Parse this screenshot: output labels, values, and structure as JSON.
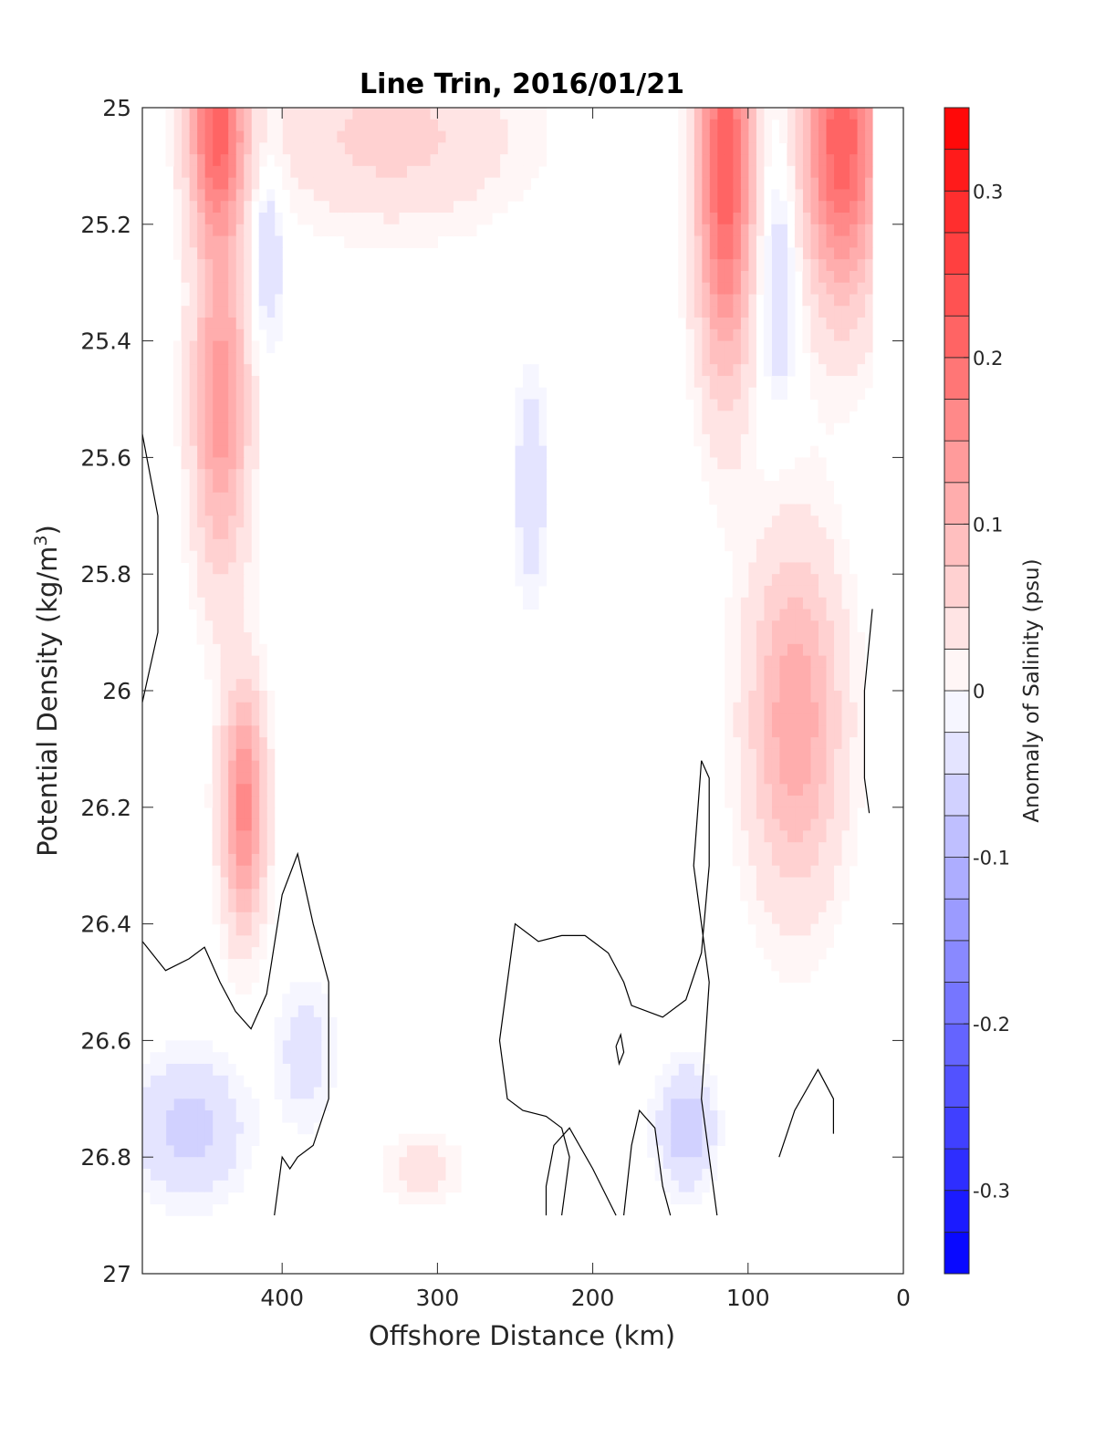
{
  "chart_data": {
    "type": "heatmap",
    "title": "Line Trin, 2016/01/21",
    "xlabel": "Offshore Distance (km)",
    "ylabel_main": "Potential Density (kg/m",
    "ylabel_sup": "3",
    "ylabel_close": ")",
    "xlim": [
      490,
      0
    ],
    "ylim": [
      25,
      27
    ],
    "y_reversed": true,
    "x_reversed": true,
    "x_ticks": [
      400,
      300,
      200,
      100,
      0
    ],
    "x_tick_labels": [
      "400",
      "300",
      "200",
      "100",
      "0"
    ],
    "y_ticks": [
      25,
      25.2,
      25.4,
      25.6,
      25.8,
      26,
      26.2,
      26.4,
      26.6,
      26.8,
      27
    ],
    "y_tick_labels": [
      "25",
      "25.2",
      "25.4",
      "25.6",
      "25.8",
      "26",
      "26.2",
      "26.4",
      "26.6",
      "26.8",
      "27"
    ],
    "colorbar": {
      "label": "Anomaly of Salinity (psu)",
      "range": [
        -0.35,
        0.35
      ],
      "levels": 28,
      "ticks": [
        0.3,
        0.2,
        0.1,
        0,
        -0.1,
        -0.2,
        -0.3
      ],
      "tick_labels": [
        "0.3",
        "0.2",
        "0.1",
        "0",
        "-0.1",
        "-0.2",
        "-0.3"
      ],
      "color_max": "#ff0000",
      "color_mid": "#ffffff",
      "color_min": "#0000ff"
    },
    "grid": false,
    "data_extent": {
      "x_min": 20,
      "x_max": 490,
      "y_min": 25,
      "y_max": 26.9
    },
    "value_sources": [
      {
        "x": 442,
        "y": 25.03,
        "value": 0.2,
        "spread_x": 18,
        "spread_y": 0.18
      },
      {
        "x": 440,
        "y": 25.5,
        "value": 0.14,
        "spread_x": 18,
        "spread_y": 0.3
      },
      {
        "x": 425,
        "y": 26.2,
        "value": 0.16,
        "spread_x": 14,
        "spread_y": 0.2
      },
      {
        "x": 330,
        "y": 25.05,
        "value": 0.06,
        "spread_x": 80,
        "spread_y": 0.15
      },
      {
        "x": 115,
        "y": 25.1,
        "value": 0.22,
        "spread_x": 18,
        "spread_y": 0.35
      },
      {
        "x": 40,
        "y": 25.05,
        "value": 0.22,
        "spread_x": 25,
        "spread_y": 0.28
      },
      {
        "x": 70,
        "y": 26.05,
        "value": 0.12,
        "spread_x": 30,
        "spread_y": 0.3
      },
      {
        "x": 80,
        "y": 25.3,
        "value": -0.06,
        "spread_x": 12,
        "spread_y": 0.2
      },
      {
        "x": 410,
        "y": 25.25,
        "value": -0.06,
        "spread_x": 10,
        "spread_y": 0.15
      },
      {
        "x": 240,
        "y": 25.65,
        "value": -0.05,
        "spread_x": 10,
        "spread_y": 0.18
      },
      {
        "x": 460,
        "y": 26.75,
        "value": -0.06,
        "spread_x": 35,
        "spread_y": 0.12
      },
      {
        "x": 385,
        "y": 26.62,
        "value": -0.04,
        "spread_x": 18,
        "spread_y": 0.12
      },
      {
        "x": 140,
        "y": 26.75,
        "value": -0.07,
        "spread_x": 18,
        "spread_y": 0.1
      },
      {
        "x": 310,
        "y": 26.82,
        "value": 0.04,
        "spread_x": 25,
        "spread_y": 0.06
      }
    ],
    "zero_contours": [
      [
        [
          490,
          25.56
        ],
        [
          480,
          25.7
        ],
        [
          480,
          25.8
        ],
        [
          480,
          25.9
        ],
        [
          490,
          26.02
        ]
      ],
      [
        [
          490,
          26.43
        ],
        [
          475,
          26.48
        ],
        [
          460,
          26.46
        ],
        [
          450,
          26.44
        ],
        [
          440,
          26.5
        ],
        [
          430,
          26.55
        ],
        [
          420,
          26.58
        ],
        [
          410,
          26.52
        ],
        [
          400,
          26.35
        ],
        [
          390,
          26.28
        ],
        [
          380,
          26.4
        ],
        [
          370,
          26.5
        ],
        [
          370,
          26.6
        ],
        [
          370,
          26.7
        ],
        [
          380,
          26.78
        ],
        [
          390,
          26.8
        ],
        [
          395,
          26.82
        ],
        [
          400,
          26.8
        ],
        [
          405,
          26.9
        ]
      ],
      [
        [
          20,
          25.86
        ],
        [
          25,
          26
        ],
        [
          25,
          26.15
        ],
        [
          22,
          26.21
        ]
      ],
      [
        [
          220,
          26.9
        ],
        [
          215,
          26.8
        ],
        [
          220,
          26.75
        ],
        [
          230,
          26.73
        ],
        [
          245,
          26.72
        ],
        [
          255,
          26.7
        ],
        [
          260,
          26.6
        ],
        [
          255,
          26.5
        ],
        [
          250,
          26.4
        ],
        [
          235,
          26.43
        ],
        [
          220,
          26.42
        ],
        [
          205,
          26.42
        ],
        [
          190,
          26.45
        ],
        [
          180,
          26.5
        ],
        [
          175,
          26.54
        ],
        [
          155,
          26.56
        ],
        [
          140,
          26.53
        ],
        [
          130,
          26.45
        ],
        [
          125,
          26.3
        ],
        [
          125,
          26.15
        ],
        [
          130,
          26.12
        ],
        [
          135,
          26.3
        ],
        [
          125,
          26.5
        ],
        [
          130,
          26.7
        ],
        [
          120,
          26.9
        ]
      ],
      [
        [
          230,
          26.9
        ],
        [
          230,
          26.85
        ],
        [
          225,
          26.78
        ],
        [
          215,
          26.75
        ],
        [
          200,
          26.82
        ],
        [
          185,
          26.9
        ]
      ],
      [
        [
          180,
          26.9
        ],
        [
          175,
          26.78
        ],
        [
          170,
          26.72
        ],
        [
          160,
          26.75
        ],
        [
          155,
          26.85
        ],
        [
          150,
          26.9
        ]
      ],
      [
        [
          80,
          26.8
        ],
        [
          70,
          26.72
        ],
        [
          55,
          26.65
        ],
        [
          45,
          26.7
        ],
        [
          45,
          26.76
        ]
      ],
      [
        [
          185,
          26.61
        ],
        [
          182,
          26.59
        ],
        [
          180,
          26.62
        ],
        [
          183,
          26.64
        ],
        [
          185,
          26.61
        ]
      ]
    ]
  }
}
